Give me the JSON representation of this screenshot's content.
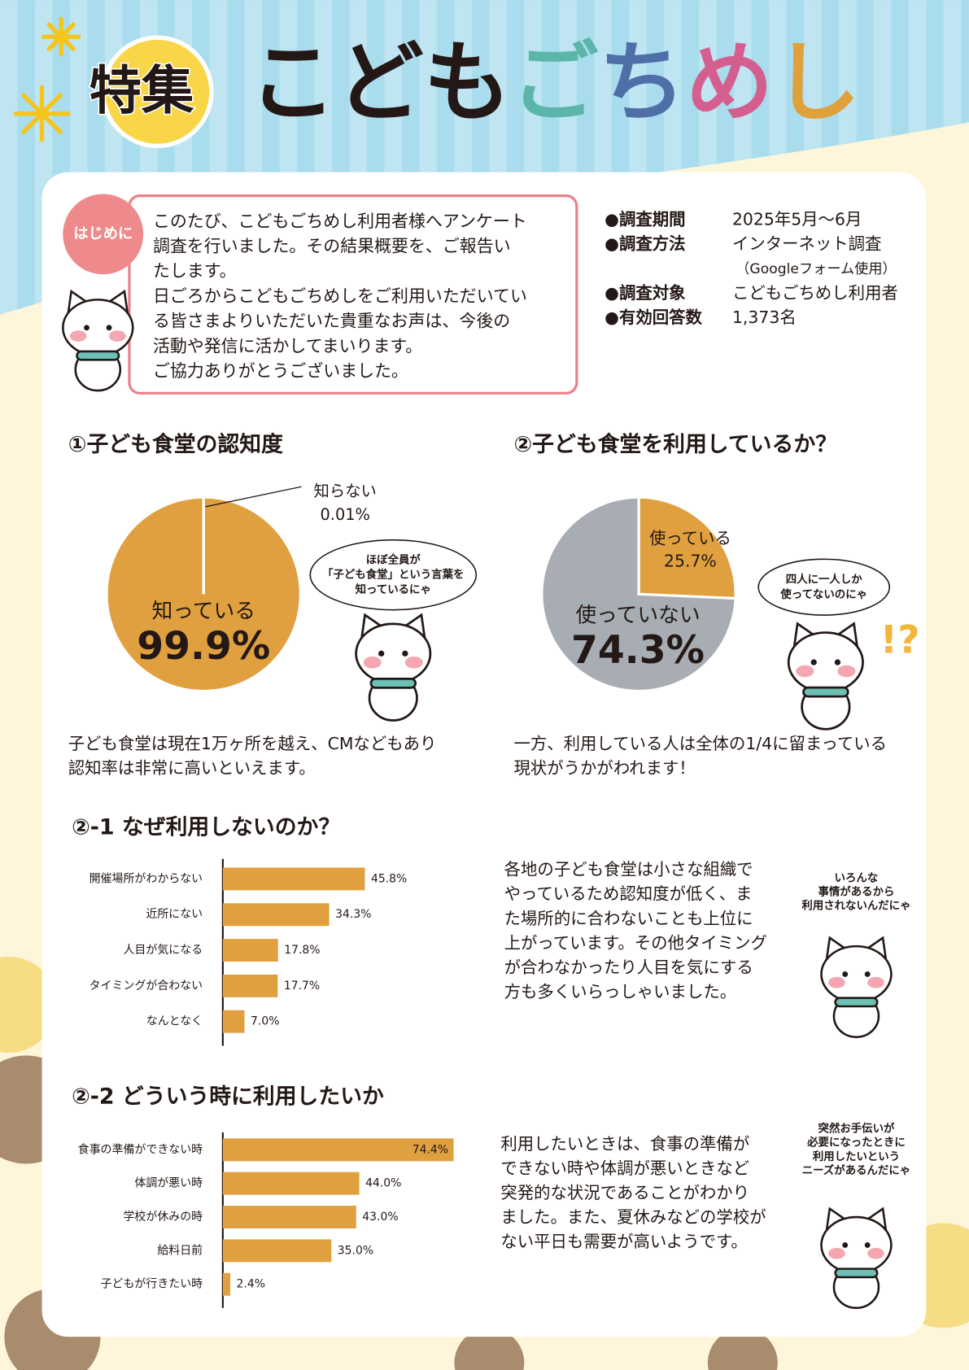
{
  "header": {
    "badge": "特集",
    "title_parts": [
      {
        "text": "こども",
        "color": "#231815"
      },
      {
        "text": "ご",
        "color": "#5bb5a8"
      },
      {
        "text": "ち",
        "color": "#4f6fa8"
      },
      {
        "text": "め",
        "color": "#d45f8f"
      },
      {
        "text": "し",
        "color": "#e0a03c"
      }
    ]
  },
  "intro": {
    "tag": "はじめに",
    "lines": [
      "このたび、こどもごちめし利用者様へアンケート",
      "調査を行いました。その結果概要を、ご報告い",
      "たします。",
      "日ごろからこどもごちめしをご利用いただいてい",
      "る皆さまよりいただいた貴重なお声は、今後の",
      "活動や発信に活かしてまいります。",
      "ご協力ありがとうございました。"
    ]
  },
  "survey": [
    {
      "label": "●調査期間",
      "value": "2025年5月～6月"
    },
    {
      "label": "●調査方法",
      "value": "インターネット調査",
      "note": "（Googleフォーム使用）"
    },
    {
      "label": "●調査対象",
      "value": "こどもごちめし利用者"
    },
    {
      "label": "●有効回答数",
      "value": "1,373名"
    }
  ],
  "chart_data": [
    {
      "type": "pie",
      "title": "①子ども食堂の認知度",
      "categories": [
        "知っている",
        "知らない"
      ],
      "values": [
        99.9,
        0.01
      ],
      "value_labels": [
        "99.9%",
        "0.01%"
      ],
      "colors": [
        "#e0a040",
        "#e0a040"
      ],
      "bubble": [
        "ほぼ全員が",
        "「子ども食堂」という言葉を",
        "知っているにゃ"
      ],
      "caption": [
        "子ども食堂は現在1万ヶ所を越え、CMなどもあり",
        "認知率は非常に高いといえます。"
      ]
    },
    {
      "type": "pie",
      "title": "②子ども食堂を利用しているか？",
      "categories": [
        "使っている",
        "使っていない"
      ],
      "values": [
        25.7,
        74.3
      ],
      "value_labels": [
        "25.7%",
        "74.3%"
      ],
      "colors": [
        "#e0a040",
        "#a7adb2"
      ],
      "bubble": [
        "四人に一人しか",
        "使ってないのにゃ"
      ],
      "exclamation": "!?",
      "caption": [
        "一方、利用している人は全体の1/4に留まっている",
        "現状がうかがわれます！"
      ]
    },
    {
      "type": "barh",
      "title": "②-1 なぜ利用しないのか？",
      "categories": [
        "開催場所がわからない",
        "近所にない",
        "人目が気になる",
        "タイミングが合わない",
        "なんとなく"
      ],
      "values": [
        45.8,
        34.3,
        17.8,
        17.7,
        7.0
      ],
      "value_labels": [
        "45.8%",
        "34.3%",
        "17.8%",
        "17.7%",
        "7.0%"
      ],
      "color": "#e0a040",
      "description": [
        "各地の子ども食堂は小さな組織で",
        "やっているため認知度が低く、ま",
        "た場所的に合わないことも上位に",
        "上がっています。その他タイミング",
        "が合わなかったり人目を気にする",
        "方も多くいらっしゃいました。"
      ],
      "bubble": [
        "いろんな",
        "事情があるから",
        "利用されないんだにゃ"
      ]
    },
    {
      "type": "barh",
      "title": "②-2 どういう時に利用したいか",
      "categories": [
        "食事の準備ができない時",
        "体調が悪い時",
        "学校が休みの時",
        "給料日前",
        "子どもが行きたい時"
      ],
      "values": [
        74.4,
        44.0,
        43.0,
        35.0,
        2.4
      ],
      "value_labels": [
        "74.4%",
        "44.0%",
        "43.0%",
        "35.0%",
        "2.4%"
      ],
      "color": "#e0a040",
      "description": [
        "利用したいときは、食事の準備が",
        "できない時や体調が悪いときなど",
        "突発的な状況であることがわかり",
        "ました。また、夏休みなどの学校が",
        "ない平日も需要が高いようです。"
      ],
      "bubble": [
        "突然お手伝いが",
        "必要になったときに",
        "利用したいという",
        "ニーズがあるんだにゃ"
      ]
    }
  ]
}
